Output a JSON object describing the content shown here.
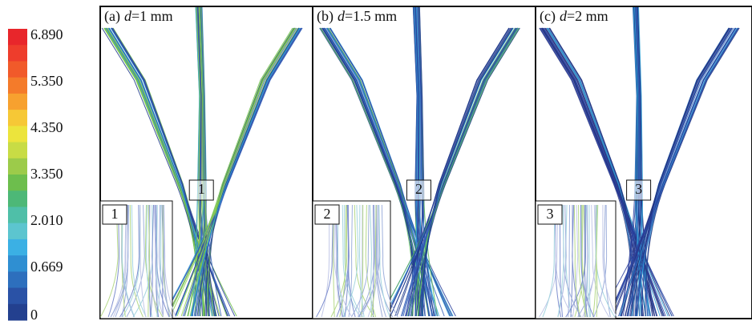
{
  "colorbar": {
    "ticks": [
      "6.890",
      "5.350",
      "4.350",
      "3.350",
      "2.010",
      "0.669",
      "0"
    ]
  },
  "panels": [
    {
      "tag": "(a)",
      "symbol": "d",
      "value": "=1 mm",
      "marker": "1"
    },
    {
      "tag": "(b)",
      "symbol": "d",
      "value": "=1.5 mm",
      "marker": "2"
    },
    {
      "tag": "(c)",
      "symbol": "d",
      "value": "=2 mm",
      "marker": "3"
    }
  ]
}
